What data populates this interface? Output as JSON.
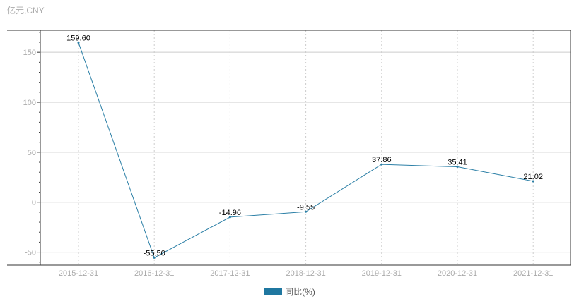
{
  "unit_label": "亿元,CNY",
  "colors": {
    "series": "#2b7fa6",
    "legend_swatch": "#1f77a0",
    "grid": "#cccccc",
    "axis": "#333333",
    "tick_text": "#aaaaaa",
    "label_text": "#000000"
  },
  "chart_data": {
    "type": "line",
    "x": [
      "2015-12-31",
      "2016-12-31",
      "2017-12-31",
      "2018-12-31",
      "2019-12-31",
      "2020-12-31",
      "2021-12-31"
    ],
    "series": [
      {
        "name": "同比(%)",
        "values": [
          159.6,
          -55.5,
          -14.96,
          -9.55,
          37.86,
          35.41,
          21.02
        ],
        "labels": [
          "159.60",
          "-55.50",
          "-14.96",
          "-9.55",
          "37.86",
          "35.41",
          "21.02"
        ]
      }
    ],
    "yticks": [
      -50,
      0,
      50,
      100,
      150
    ],
    "ylim": [
      -63,
      172
    ],
    "grid": true,
    "legend_position": "bottom-center"
  }
}
